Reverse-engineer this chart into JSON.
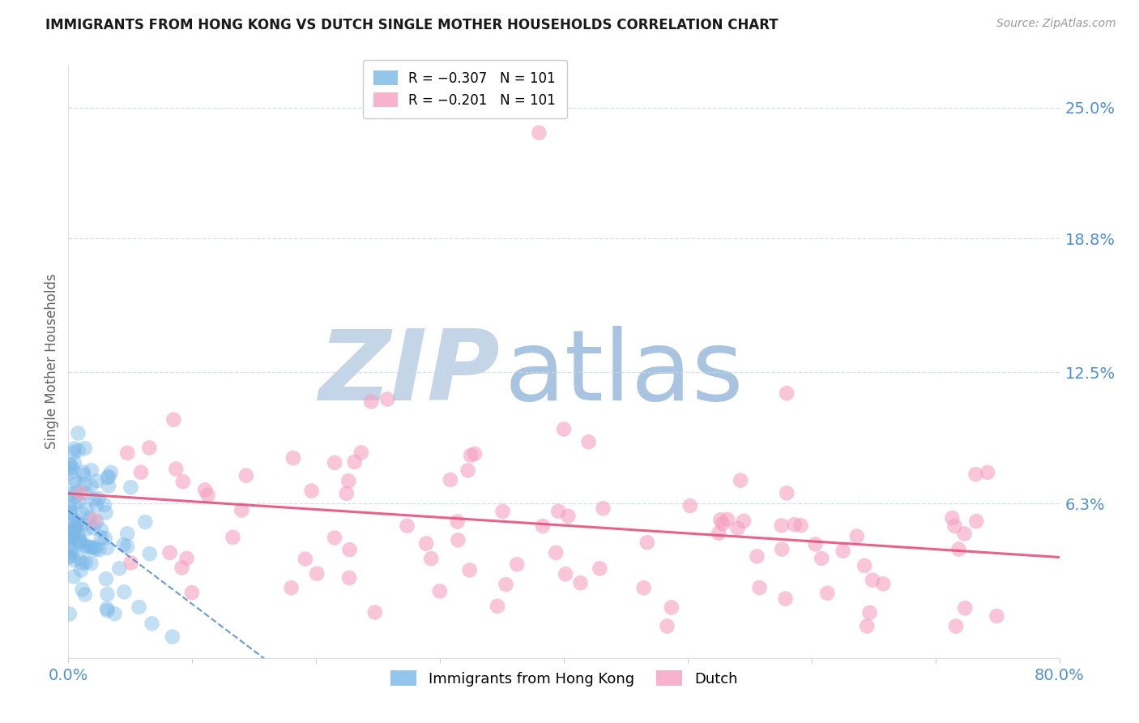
{
  "title": "IMMIGRANTS FROM HONG KONG VS DUTCH SINGLE MOTHER HOUSEHOLDS CORRELATION CHART",
  "source": "Source: ZipAtlas.com",
  "ylabel": "Single Mother Households",
  "legend_r1": "R = -0.307   N = 101",
  "legend_r2": "R = -0.201   N = 101",
  "legend_label1": "Immigrants from Hong Kong",
  "legend_label2": "Dutch",
  "blue_color": "#7ab8e8",
  "pink_color": "#f4a0be",
  "blue_line_color": "#3a7abf",
  "pink_line_color": "#e8507a",
  "watermark_zip_color": "#c5d5e8",
  "watermark_atlas_color": "#a8c4e0",
  "xmin": 0.0,
  "xmax": 0.8,
  "ymin": -0.01,
  "ymax": 0.27,
  "right_yticks": [
    0.063,
    0.125,
    0.188,
    0.25
  ],
  "right_yticklabels": [
    "6.3%",
    "12.5%",
    "18.8%",
    "25.0%"
  ],
  "grid_color": "#c8d8e8",
  "tick_color": "#5090d0",
  "seed": 99
}
